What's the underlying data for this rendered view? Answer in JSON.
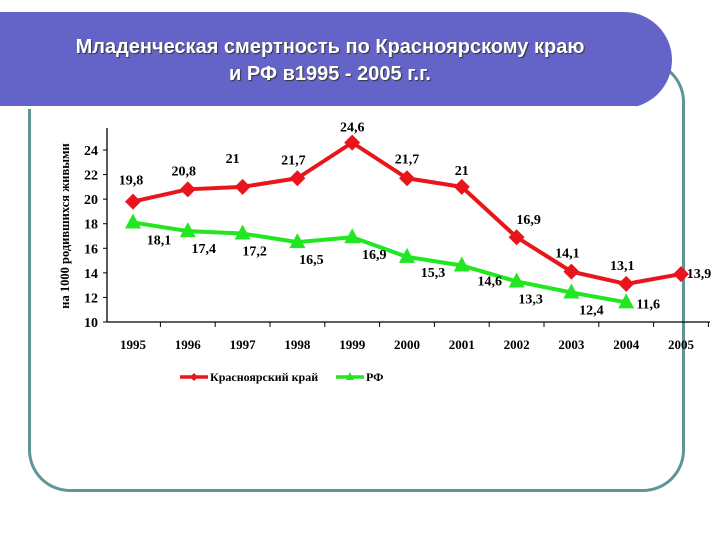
{
  "title": {
    "line1": "Младенческая смертность по Красноярскому краю",
    "line2": "и РФ в1995 - 2005 г.г."
  },
  "colors": {
    "title_bg": "#6464c8",
    "frame": "#5f9595",
    "krasnoyarsk": "#e8161c",
    "rf": "#22e622"
  },
  "chart_data": {
    "type": "line",
    "title": "Младенческая смертность по Красноярскому краю и РФ в1995 - 2005 г.г.",
    "xlabel": "",
    "ylabel": "на 1000 родившихся живыми",
    "categories": [
      "1995",
      "1996",
      "1997",
      "1998",
      "1999",
      "2000",
      "2001",
      "2002",
      "2003",
      "2004",
      "2005"
    ],
    "ylim": [
      10,
      25
    ],
    "yticks": [
      10,
      12,
      14,
      16,
      18,
      20,
      22,
      24
    ],
    "grid": false,
    "legend_position": "bottom",
    "series": [
      {
        "name": "Красноярский край",
        "marker": "diamond",
        "color": "#e8161c",
        "values": [
          19.8,
          20.8,
          21,
          21.7,
          24.6,
          21.7,
          21,
          16.9,
          14.1,
          13.1,
          13.9
        ],
        "labels": [
          "19,8",
          "20,8",
          "21",
          "21,7",
          "24,6",
          "21,7",
          "21",
          "16,9",
          "14,1",
          "13,1",
          "13,9"
        ]
      },
      {
        "name": "РФ",
        "marker": "triangle",
        "color": "#22e622",
        "values": [
          18.1,
          17.4,
          17.2,
          16.5,
          16.9,
          15.3,
          14.6,
          13.3,
          12.4,
          11.6,
          null
        ],
        "labels": [
          "18,1",
          "17,4",
          "17,2",
          "16,5",
          "16,9",
          "15,3",
          "14,6",
          "13,3",
          "12,4",
          "11,6",
          ""
        ]
      }
    ]
  }
}
